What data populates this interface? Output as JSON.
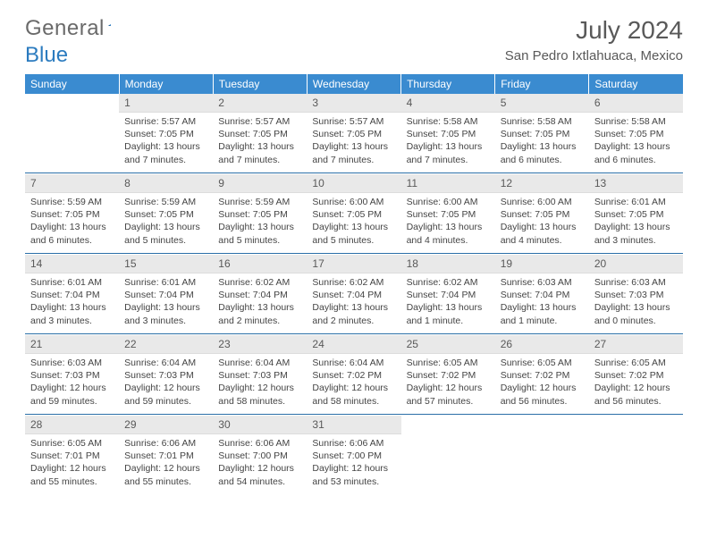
{
  "header": {
    "logo_general": "General",
    "logo_blue": "Blue",
    "month_title": "July 2024",
    "location": "San Pedro Ixtlahuaca, Mexico"
  },
  "colors": {
    "header_bg": "#3a8bd0",
    "daynum_bg": "#e9e9e9",
    "rule": "#2b6fa8",
    "title_color": "#595959",
    "text_color": "#444444"
  },
  "weekdays": [
    "Sunday",
    "Monday",
    "Tuesday",
    "Wednesday",
    "Thursday",
    "Friday",
    "Saturday"
  ],
  "weeks": [
    [
      {
        "blank": true
      },
      {
        "num": "1",
        "sunrise": "Sunrise: 5:57 AM",
        "sunset": "Sunset: 7:05 PM",
        "daylight": "Daylight: 13 hours and 7 minutes."
      },
      {
        "num": "2",
        "sunrise": "Sunrise: 5:57 AM",
        "sunset": "Sunset: 7:05 PM",
        "daylight": "Daylight: 13 hours and 7 minutes."
      },
      {
        "num": "3",
        "sunrise": "Sunrise: 5:57 AM",
        "sunset": "Sunset: 7:05 PM",
        "daylight": "Daylight: 13 hours and 7 minutes."
      },
      {
        "num": "4",
        "sunrise": "Sunrise: 5:58 AM",
        "sunset": "Sunset: 7:05 PM",
        "daylight": "Daylight: 13 hours and 7 minutes."
      },
      {
        "num": "5",
        "sunrise": "Sunrise: 5:58 AM",
        "sunset": "Sunset: 7:05 PM",
        "daylight": "Daylight: 13 hours and 6 minutes."
      },
      {
        "num": "6",
        "sunrise": "Sunrise: 5:58 AM",
        "sunset": "Sunset: 7:05 PM",
        "daylight": "Daylight: 13 hours and 6 minutes."
      }
    ],
    [
      {
        "num": "7",
        "sunrise": "Sunrise: 5:59 AM",
        "sunset": "Sunset: 7:05 PM",
        "daylight": "Daylight: 13 hours and 6 minutes."
      },
      {
        "num": "8",
        "sunrise": "Sunrise: 5:59 AM",
        "sunset": "Sunset: 7:05 PM",
        "daylight": "Daylight: 13 hours and 5 minutes."
      },
      {
        "num": "9",
        "sunrise": "Sunrise: 5:59 AM",
        "sunset": "Sunset: 7:05 PM",
        "daylight": "Daylight: 13 hours and 5 minutes."
      },
      {
        "num": "10",
        "sunrise": "Sunrise: 6:00 AM",
        "sunset": "Sunset: 7:05 PM",
        "daylight": "Daylight: 13 hours and 5 minutes."
      },
      {
        "num": "11",
        "sunrise": "Sunrise: 6:00 AM",
        "sunset": "Sunset: 7:05 PM",
        "daylight": "Daylight: 13 hours and 4 minutes."
      },
      {
        "num": "12",
        "sunrise": "Sunrise: 6:00 AM",
        "sunset": "Sunset: 7:05 PM",
        "daylight": "Daylight: 13 hours and 4 minutes."
      },
      {
        "num": "13",
        "sunrise": "Sunrise: 6:01 AM",
        "sunset": "Sunset: 7:05 PM",
        "daylight": "Daylight: 13 hours and 3 minutes."
      }
    ],
    [
      {
        "num": "14",
        "sunrise": "Sunrise: 6:01 AM",
        "sunset": "Sunset: 7:04 PM",
        "daylight": "Daylight: 13 hours and 3 minutes."
      },
      {
        "num": "15",
        "sunrise": "Sunrise: 6:01 AM",
        "sunset": "Sunset: 7:04 PM",
        "daylight": "Daylight: 13 hours and 3 minutes."
      },
      {
        "num": "16",
        "sunrise": "Sunrise: 6:02 AM",
        "sunset": "Sunset: 7:04 PM",
        "daylight": "Daylight: 13 hours and 2 minutes."
      },
      {
        "num": "17",
        "sunrise": "Sunrise: 6:02 AM",
        "sunset": "Sunset: 7:04 PM",
        "daylight": "Daylight: 13 hours and 2 minutes."
      },
      {
        "num": "18",
        "sunrise": "Sunrise: 6:02 AM",
        "sunset": "Sunset: 7:04 PM",
        "daylight": "Daylight: 13 hours and 1 minute."
      },
      {
        "num": "19",
        "sunrise": "Sunrise: 6:03 AM",
        "sunset": "Sunset: 7:04 PM",
        "daylight": "Daylight: 13 hours and 1 minute."
      },
      {
        "num": "20",
        "sunrise": "Sunrise: 6:03 AM",
        "sunset": "Sunset: 7:03 PM",
        "daylight": "Daylight: 13 hours and 0 minutes."
      }
    ],
    [
      {
        "num": "21",
        "sunrise": "Sunrise: 6:03 AM",
        "sunset": "Sunset: 7:03 PM",
        "daylight": "Daylight: 12 hours and 59 minutes."
      },
      {
        "num": "22",
        "sunrise": "Sunrise: 6:04 AM",
        "sunset": "Sunset: 7:03 PM",
        "daylight": "Daylight: 12 hours and 59 minutes."
      },
      {
        "num": "23",
        "sunrise": "Sunrise: 6:04 AM",
        "sunset": "Sunset: 7:03 PM",
        "daylight": "Daylight: 12 hours and 58 minutes."
      },
      {
        "num": "24",
        "sunrise": "Sunrise: 6:04 AM",
        "sunset": "Sunset: 7:02 PM",
        "daylight": "Daylight: 12 hours and 58 minutes."
      },
      {
        "num": "25",
        "sunrise": "Sunrise: 6:05 AM",
        "sunset": "Sunset: 7:02 PM",
        "daylight": "Daylight: 12 hours and 57 minutes."
      },
      {
        "num": "26",
        "sunrise": "Sunrise: 6:05 AM",
        "sunset": "Sunset: 7:02 PM",
        "daylight": "Daylight: 12 hours and 56 minutes."
      },
      {
        "num": "27",
        "sunrise": "Sunrise: 6:05 AM",
        "sunset": "Sunset: 7:02 PM",
        "daylight": "Daylight: 12 hours and 56 minutes."
      }
    ],
    [
      {
        "num": "28",
        "sunrise": "Sunrise: 6:05 AM",
        "sunset": "Sunset: 7:01 PM",
        "daylight": "Daylight: 12 hours and 55 minutes."
      },
      {
        "num": "29",
        "sunrise": "Sunrise: 6:06 AM",
        "sunset": "Sunset: 7:01 PM",
        "daylight": "Daylight: 12 hours and 55 minutes."
      },
      {
        "num": "30",
        "sunrise": "Sunrise: 6:06 AM",
        "sunset": "Sunset: 7:00 PM",
        "daylight": "Daylight: 12 hours and 54 minutes."
      },
      {
        "num": "31",
        "sunrise": "Sunrise: 6:06 AM",
        "sunset": "Sunset: 7:00 PM",
        "daylight": "Daylight: 12 hours and 53 minutes."
      },
      {
        "blank": true
      },
      {
        "blank": true
      },
      {
        "blank": true
      }
    ]
  ]
}
